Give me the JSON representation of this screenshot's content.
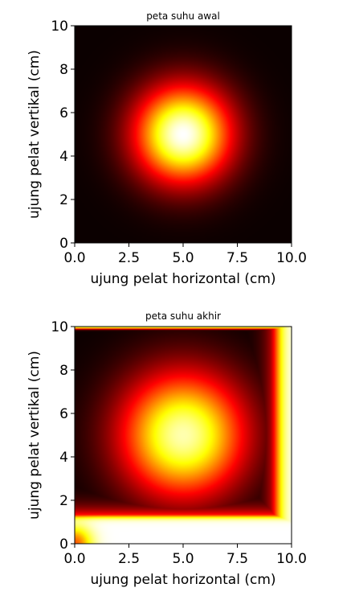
{
  "chart_data": [
    {
      "type": "heatmap",
      "title": "peta suhu awal",
      "xlabel": "ujung pelat horizontal (cm)",
      "ylabel": "ujung pelat vertikal (cm)",
      "xlim": [
        0,
        10
      ],
      "ylim": [
        0,
        10
      ],
      "xticks": [
        0,
        2.5,
        5,
        7.5,
        10
      ],
      "xtick_labels": [
        "0.0",
        "2.5",
        "5.0",
        "7.5",
        "10.0"
      ],
      "yticks": [
        0,
        2,
        4,
        6,
        8,
        10
      ],
      "ytick_labels": [
        "0",
        "2",
        "4",
        "6",
        "8",
        "10"
      ],
      "colormap": "hot",
      "grid": false,
      "field": {
        "kind": "gaussian",
        "center": [
          5,
          5
        ],
        "sigma": 1.55
      }
    },
    {
      "type": "heatmap",
      "title": "peta suhu akhir",
      "xlabel": "ujung pelat horizontal (cm)",
      "ylabel": "ujung pelat vertikal (cm)",
      "xlim": [
        0,
        10
      ],
      "ylim": [
        0,
        10
      ],
      "xticks": [
        0,
        2.5,
        5,
        7.5,
        10
      ],
      "xtick_labels": [
        "0.0",
        "2.5",
        "5.0",
        "7.5",
        "10.0"
      ],
      "yticks": [
        0,
        2,
        4,
        6,
        8,
        10
      ],
      "ytick_labels": [
        "0",
        "2",
        "4",
        "6",
        "8",
        "10"
      ],
      "colormap": "hot",
      "grid": false,
      "field": {
        "kind": "gaussian-with-hot-edges",
        "center": [
          5,
          5
        ],
        "sigma": 2.0,
        "peak": 0.92,
        "hot_bottom_below_y": 1.3,
        "hot_right_beyond_x": 9.3,
        "hot_top_row_y": 9.9
      }
    }
  ]
}
